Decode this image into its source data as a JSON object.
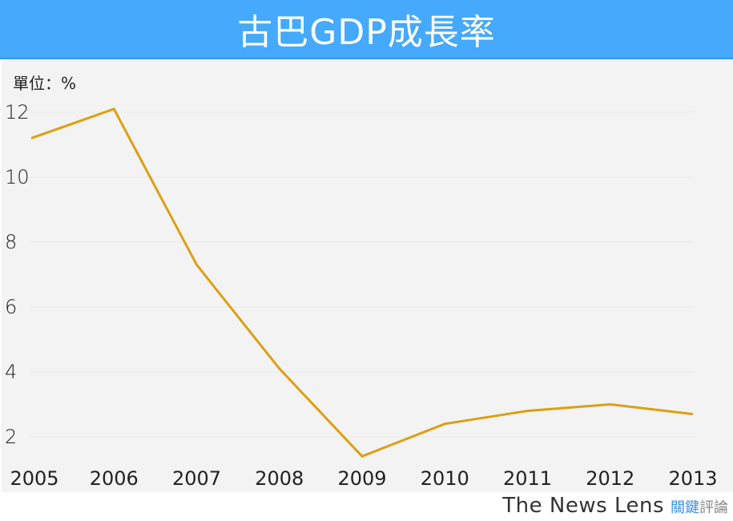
{
  "header": {
    "title": "古巴GDP成長率",
    "background": "#45a9fc"
  },
  "chart": {
    "unit_label": "單位：%",
    "line_color": "#dba014",
    "panel_background": "#f3f3f3"
  },
  "footer": {
    "brand": "The News Lens",
    "brand_cn_part1": "關鍵",
    "brand_cn_part2": "評論"
  },
  "chart_data": {
    "type": "line",
    "title": "古巴GDP成長率",
    "xlabel": "",
    "ylabel": "單位：%",
    "categories": [
      "2005",
      "2006",
      "2007",
      "2008",
      "2009",
      "2010",
      "2011",
      "2012",
      "2013"
    ],
    "series": [
      {
        "name": "GDP成長率",
        "values": [
          11.2,
          12.1,
          7.3,
          4.1,
          1.4,
          2.4,
          2.8,
          3.0,
          2.7
        ]
      }
    ],
    "yticks": [
      2,
      4,
      6,
      8,
      10,
      12
    ],
    "ylim": [
      1,
      12.5
    ],
    "grid": true,
    "legend": "none"
  }
}
